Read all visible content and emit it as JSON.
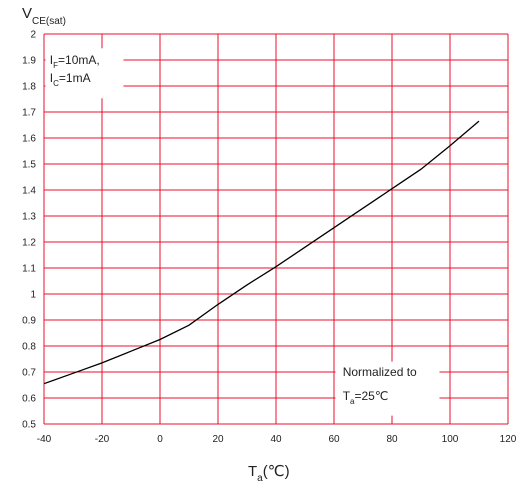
{
  "chart_data": {
    "type": "line",
    "ylabel": {
      "main": "V",
      "sub": "CE(sat)"
    },
    "xlabel": {
      "main": "T",
      "sub": "a",
      "suffix": "(℃)"
    },
    "xlim": [
      -40,
      120
    ],
    "ylim": [
      0.5,
      2
    ],
    "x_ticks": [
      -40,
      -20,
      0,
      20,
      40,
      60,
      80,
      100,
      120
    ],
    "y_ticks": [
      0.5,
      0.6,
      0.7,
      0.8,
      0.9,
      1,
      1.1,
      1.2,
      1.3,
      1.4,
      1.5,
      1.6,
      1.7,
      1.8,
      1.9,
      2
    ],
    "grid": true,
    "grid_color": "#e8112d",
    "line_color": "#000000",
    "series": [
      {
        "x": [
          -40,
          -30,
          -20,
          -10,
          0,
          10,
          20,
          30,
          40,
          50,
          60,
          70,
          80,
          90,
          100,
          110
        ],
        "y": [
          0.655,
          0.695,
          0.735,
          0.78,
          0.825,
          0.88,
          0.96,
          1.035,
          1.105,
          1.18,
          1.255,
          1.33,
          1.405,
          1.48,
          1.57,
          1.665
        ]
      }
    ],
    "annotations": [
      {
        "name": "condition-label",
        "position": "top-left",
        "lines": [
          {
            "main": "I",
            "sub": "F",
            "rest": "=10mA,"
          },
          {
            "main": "I",
            "sub": "C",
            "rest": "=1mA"
          }
        ]
      },
      {
        "name": "normalization-label",
        "position": "bottom-right",
        "lines": [
          {
            "main": "",
            "sub": "",
            "rest": "Normalized to"
          },
          {
            "main": "T",
            "sub": "a",
            "rest": "=25℃"
          }
        ]
      }
    ]
  }
}
